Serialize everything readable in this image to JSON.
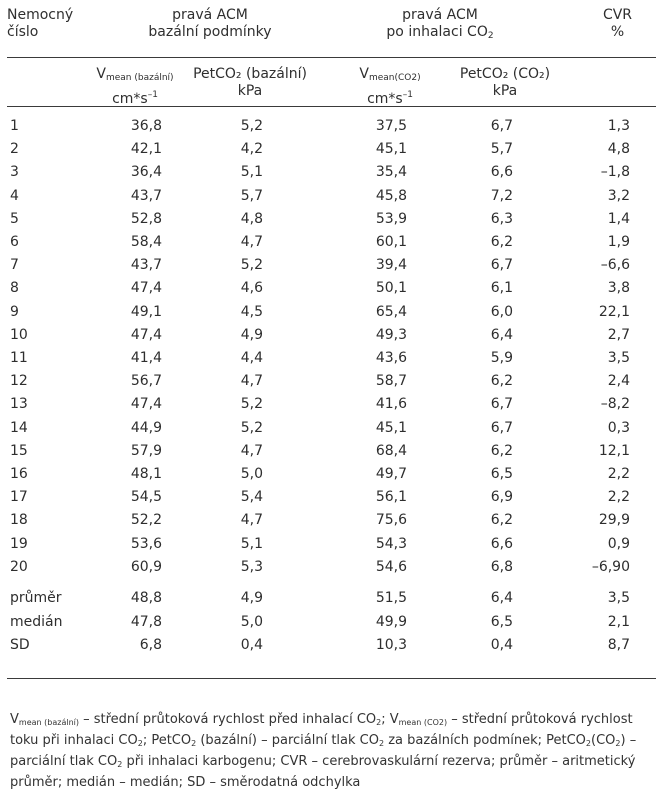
{
  "headers": {
    "col1": [
      "Nemocný",
      "číslo"
    ],
    "group_basal": [
      "pravá ACM",
      "bazální podmínky"
    ],
    "group_co2": [
      "pravá ACM",
      "po inhalaci CO",
      "2"
    ],
    "cvr": [
      "CVR",
      "%"
    ],
    "vmean_basal": {
      "main": "V",
      "sub": "mean (bazální)",
      "unit": "cm*s",
      "unit_sup": "–1"
    },
    "petco2_basal": {
      "main": "PetCO₂ (bazální)",
      "unit": "kPa"
    },
    "vmean_co2": {
      "main": "V",
      "sub": "mean(CO2)",
      "unit": "cm*s",
      "unit_sup": "–1"
    },
    "petco2_co2": {
      "main": "PetCO₂ (CO₂)",
      "unit": "kPa"
    }
  },
  "rows": [
    [
      "1",
      "36,8",
      "5,2",
      "37,5",
      "6,7",
      "1,3"
    ],
    [
      "2",
      "42,1",
      "4,2",
      "45,1",
      "5,7",
      "4,8"
    ],
    [
      "3",
      "36,4",
      "5,1",
      "35,4",
      "6,6",
      "–1,8"
    ],
    [
      "4",
      "43,7",
      "5,7",
      "45,8",
      "7,2",
      "3,2"
    ],
    [
      "5",
      "52,8",
      "4,8",
      "53,9",
      "6,3",
      "1,4"
    ],
    [
      "6",
      "58,4",
      "4,7",
      "60,1",
      "6,2",
      "1,9"
    ],
    [
      "7",
      "43,7",
      "5,2",
      "39,4",
      "6,7",
      "–6,6"
    ],
    [
      "8",
      "47,4",
      "4,6",
      "50,1",
      "6,1",
      "3,8"
    ],
    [
      "9",
      "49,1",
      "4,5",
      "65,4",
      "6,0",
      "22,1"
    ],
    [
      "10",
      "47,4",
      "4,9",
      "49,3",
      "6,4",
      "2,7"
    ],
    [
      "11",
      "41,4",
      "4,4",
      "43,6",
      "5,9",
      "3,5"
    ],
    [
      "12",
      "56,7",
      "4,7",
      "58,7",
      "6,2",
      "2,4"
    ],
    [
      "13",
      "47,4",
      "5,2",
      "41,6",
      "6,7",
      "–8,2"
    ],
    [
      "14",
      "44,9",
      "5,2",
      "45,1",
      "6,7",
      "0,3"
    ],
    [
      "15",
      "57,9",
      "4,7",
      "68,4",
      "6,2",
      "12,1"
    ],
    [
      "16",
      "48,1",
      "5,0",
      "49,7",
      "6,5",
      "2,2"
    ],
    [
      "17",
      "54,5",
      "5,4",
      "56,1",
      "6,9",
      "2,2"
    ],
    [
      "18",
      "52,2",
      "4,7",
      "75,6",
      "6,2",
      "29,9"
    ],
    [
      "19",
      "53,6",
      "5,1",
      "54,3",
      "6,6",
      "0,9"
    ],
    [
      "20",
      "60,9",
      "5,3",
      "54,6",
      "6,8",
      "–6,90"
    ]
  ],
  "summary": [
    [
      "průměr",
      "48,8",
      "4,9",
      "51,5",
      "6,4",
      "3,5"
    ],
    [
      "medián",
      "47,8",
      "5,0",
      "49,9",
      "6,5",
      "2,1"
    ],
    [
      "SD",
      "6,8",
      "0,4",
      "10,3",
      "0,4",
      "8,7"
    ]
  ],
  "footnote": [
    {
      "t": "V"
    },
    {
      "sub": "mean (bazální)"
    },
    {
      "t": " – střední průtoková rychlost před inhalací CO"
    },
    {
      "sub": "2"
    },
    {
      "t": "; V"
    },
    {
      "sub": "mean (CO2)"
    },
    {
      "t": " – střední průtoková rychlost toku při inhalaci CO"
    },
    {
      "sub": "2"
    },
    {
      "t": "; PetCO"
    },
    {
      "sub": "2"
    },
    {
      "t": " (bazální) – parciální tlak CO"
    },
    {
      "sub": "2"
    },
    {
      "t": " za bazálních podmínek; PetCO"
    },
    {
      "sub": "2"
    },
    {
      "t": "(CO"
    },
    {
      "sub": "2"
    },
    {
      "t": ") – parciální tlak CO"
    },
    {
      "sub": "2"
    },
    {
      "t": " při inhalaci karbogenu; CVR – cerebrovaskulární rezerva; průměr – aritmetický průměr; medián – medián; SD – směrodatná odchylka"
    }
  ]
}
